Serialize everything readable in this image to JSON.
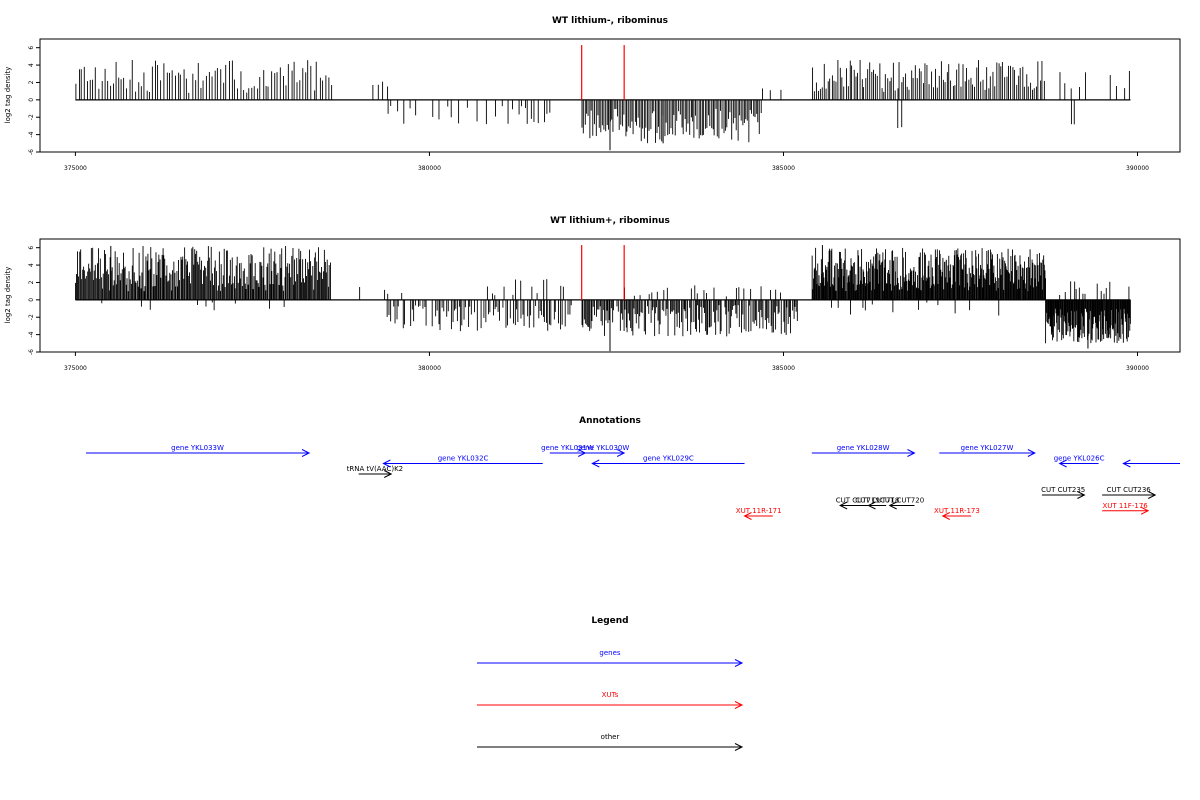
{
  "chart_data": [
    {
      "type": "bar",
      "title": "WT lithium-, ribominus",
      "ylabel": "log2 tag density",
      "xlim": [
        374500,
        390600
      ],
      "ylim": [
        -6,
        7
      ],
      "xticks": [
        375000,
        380000,
        385000,
        390000
      ],
      "yticks": [
        6,
        4,
        2,
        0,
        -2,
        -4,
        -6
      ],
      "markers": [
        382150,
        382750
      ],
      "marker_color": "#ff0000",
      "segments": [
        {
          "start": 375000,
          "end": 378600,
          "sign": 1,
          "min": 0.8,
          "max": 4.6,
          "density": 1.0,
          "step": 40,
          "seed": 11
        },
        {
          "start": 379200,
          "end": 379400,
          "sign": 1,
          "min": 1.2,
          "max": 2.6,
          "density": 1.0,
          "step": 60,
          "seed": 12
        },
        {
          "start": 379400,
          "end": 381700,
          "sign": -1,
          "min": 0.6,
          "max": 2.8,
          "density": 0.55,
          "step": 45,
          "seed": 13
        },
        {
          "start": 382150,
          "end": 384700,
          "sign": -1,
          "min": 1.0,
          "max": 5.0,
          "density": 1.0,
          "step": 22,
          "seed": 14
        },
        {
          "start": 384700,
          "end": 385000,
          "sign": 1,
          "min": 0.8,
          "max": 1.6,
          "density": 0.5,
          "step": 80,
          "seed": 15
        },
        {
          "start": 385400,
          "end": 388700,
          "sign": 1,
          "min": 0.8,
          "max": 4.8,
          "density": 1.0,
          "step": 28,
          "seed": 16
        },
        {
          "start": 386600,
          "end": 386700,
          "sign": -1,
          "min": 2.5,
          "max": 3.4,
          "density": 1.0,
          "step": 60,
          "seed": 17
        },
        {
          "start": 388900,
          "end": 389900,
          "sign": 1,
          "min": 1.0,
          "max": 3.4,
          "density": 0.4,
          "step": 70,
          "seed": 18
        },
        {
          "start": 389050,
          "end": 389100,
          "sign": -1,
          "min": 2.8,
          "max": 3.2,
          "density": 1.0,
          "step": 40,
          "seed": 19
        }
      ],
      "spikes": [
        {
          "x": 382550,
          "y": -5.8
        },
        {
          "x": 383300,
          "y": -5.0
        }
      ]
    },
    {
      "type": "bar",
      "title": "WT lithium+, ribominus",
      "ylabel": "log2 tag density",
      "xlim": [
        374500,
        390600
      ],
      "ylim": [
        -6,
        7
      ],
      "xticks": [
        375000,
        380000,
        385000,
        390000
      ],
      "yticks": [
        6,
        4,
        2,
        0,
        -2,
        -4,
        -6
      ],
      "markers": [
        382150,
        382750
      ],
      "marker_color": "#ff0000",
      "segments": [
        {
          "start": 375000,
          "end": 378600,
          "sign": 1,
          "min": 1.0,
          "max": 6.2,
          "density": 1.0,
          "step": 14,
          "seed": 21
        },
        {
          "start": 375300,
          "end": 378000,
          "sign": -1,
          "min": 0.3,
          "max": 1.6,
          "density": 0.08,
          "step": 30,
          "seed": 22
        },
        {
          "start": 379000,
          "end": 379600,
          "sign": 1,
          "min": 0.6,
          "max": 3.0,
          "density": 0.4,
          "step": 50,
          "seed": 23
        },
        {
          "start": 379400,
          "end": 382000,
          "sign": -1,
          "min": 0.6,
          "max": 3.6,
          "density": 0.75,
          "step": 22,
          "seed": 24
        },
        {
          "start": 380800,
          "end": 382000,
          "sign": 1,
          "min": 0.5,
          "max": 2.4,
          "density": 0.5,
          "step": 40,
          "seed": 25
        },
        {
          "start": 382150,
          "end": 385200,
          "sign": -1,
          "min": 0.6,
          "max": 4.2,
          "density": 0.85,
          "step": 16,
          "seed": 26
        },
        {
          "start": 382750,
          "end": 385000,
          "sign": 1,
          "min": 0.4,
          "max": 1.8,
          "density": 0.25,
          "step": 35,
          "seed": 27
        },
        {
          "start": 385400,
          "end": 388700,
          "sign": 1,
          "min": 1.0,
          "max": 6.0,
          "density": 1.0,
          "step": 10,
          "seed": 28
        },
        {
          "start": 385400,
          "end": 388700,
          "sign": -1,
          "min": 0.3,
          "max": 2.0,
          "density": 0.12,
          "step": 30,
          "seed": 29
        },
        {
          "start": 388700,
          "end": 389900,
          "sign": -1,
          "min": 1.0,
          "max": 5.0,
          "density": 1.0,
          "step": 9,
          "seed": 30
        },
        {
          "start": 388900,
          "end": 389900,
          "sign": 1,
          "min": 0.4,
          "max": 2.2,
          "density": 0.4,
          "step": 25,
          "seed": 31
        }
      ],
      "spikes": [
        {
          "x": 375500,
          "y": 6.2
        },
        {
          "x": 382550,
          "y": -5.9
        },
        {
          "x": 385550,
          "y": 6.3
        },
        {
          "x": 389300,
          "y": -5.6
        }
      ]
    }
  ],
  "annotations": {
    "title": "Annotations",
    "xlim": [
      374500,
      390600
    ],
    "features": [
      {
        "label": "gene YKL033W",
        "start": 375150,
        "end": 378300,
        "dir": "right",
        "color": "#0000ff",
        "row": 0
      },
      {
        "label": "tRNA tV(AAC)K2",
        "start": 379000,
        "end": 379460,
        "dir": "right",
        "color": "#000000",
        "row": 2
      },
      {
        "label": "gene YKL032C",
        "start": 379350,
        "end": 381600,
        "dir": "left",
        "color": "#0000ff",
        "row": 1
      },
      {
        "label": "gene YKL031W",
        "start": 381700,
        "end": 382200,
        "dir": "right",
        "color": "#0000ff",
        "row": 0
      },
      {
        "label": "gene YKL030W",
        "start": 382150,
        "end": 382750,
        "dir": "right",
        "color": "#0000ff",
        "row": 0
      },
      {
        "label": "gene YKL029C",
        "start": 382300,
        "end": 384450,
        "dir": "left",
        "color": "#0000ff",
        "row": 1
      },
      {
        "label": "gene YKL028W",
        "start": 385400,
        "end": 386850,
        "dir": "right",
        "color": "#0000ff",
        "row": 0
      },
      {
        "label": "gene YKL027W",
        "start": 387200,
        "end": 388550,
        "dir": "right",
        "color": "#0000ff",
        "row": 0
      },
      {
        "label": "gene YKL026C",
        "start": 388900,
        "end": 389450,
        "dir": "left",
        "color": "#0000ff",
        "row": 1
      },
      {
        "label": "",
        "start": 389800,
        "end": 390600,
        "dir": "left",
        "color": "#0000ff",
        "row": 1
      },
      {
        "label": "CUT CUT719",
        "start": 385800,
        "end": 386300,
        "dir": "left",
        "color": "#000000",
        "row": 5
      },
      {
        "label": "CUT CUT718",
        "start": 386200,
        "end": 386450,
        "dir": "left",
        "color": "#000000",
        "row": 5
      },
      {
        "label": "CUT CUT720",
        "start": 386500,
        "end": 386850,
        "dir": "left",
        "color": "#000000",
        "row": 5
      },
      {
        "label": "CUT CUT235",
        "start": 388650,
        "end": 389250,
        "dir": "right",
        "color": "#000000",
        "row": 4
      },
      {
        "label": "CUT CUT236",
        "start": 389500,
        "end": 390250,
        "dir": "right",
        "color": "#000000",
        "row": 4
      },
      {
        "label": "XUT 11R-171",
        "start": 384450,
        "end": 384850,
        "dir": "left",
        "color": "#ff0000",
        "row": 6
      },
      {
        "label": "XUT 11R-173",
        "start": 387250,
        "end": 387650,
        "dir": "left",
        "color": "#ff0000",
        "row": 6
      },
      {
        "label": "XUT 11F-176",
        "start": 389500,
        "end": 390150,
        "dir": "right",
        "color": "#ff0000",
        "row": 5.5
      }
    ]
  },
  "legend": {
    "title": "Legend",
    "items": [
      {
        "label": "genes",
        "color": "#0000ff"
      },
      {
        "label": "XUTs",
        "color": "#ff0000"
      },
      {
        "label": "other",
        "color": "#000000"
      }
    ]
  }
}
